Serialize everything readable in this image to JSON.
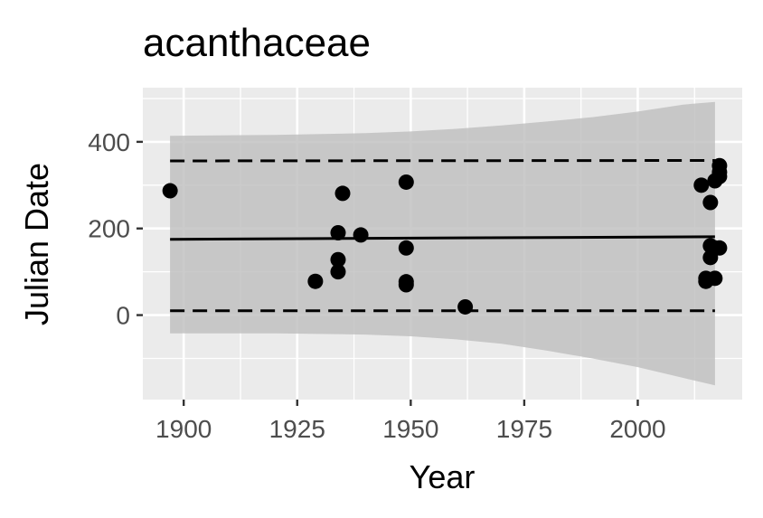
{
  "chart_data": {
    "type": "scatter",
    "title": "acanthaceae",
    "xlabel": "Year",
    "ylabel": "Julian Date",
    "xlim": [
      1891,
      2023
    ],
    "ylim": [
      -195,
      525
    ],
    "x_ticks": [
      1900,
      1925,
      1950,
      1975,
      2000
    ],
    "y_ticks": [
      0,
      200,
      400
    ],
    "grid": true,
    "background": "#ebebeb",
    "colors": {
      "point": "#000000",
      "ribbon": "#bdbdbd",
      "line": "#000000"
    },
    "points": [
      {
        "x": 1897,
        "y": 287
      },
      {
        "x": 1929,
        "y": 78
      },
      {
        "x": 1934,
        "y": 190
      },
      {
        "x": 1934,
        "y": 128
      },
      {
        "x": 1934,
        "y": 100
      },
      {
        "x": 1935,
        "y": 281
      },
      {
        "x": 1939,
        "y": 185
      },
      {
        "x": 1949,
        "y": 307
      },
      {
        "x": 1949,
        "y": 155
      },
      {
        "x": 1949,
        "y": 77
      },
      {
        "x": 1949,
        "y": 70
      },
      {
        "x": 1962,
        "y": 19
      },
      {
        "x": 2014,
        "y": 300
      },
      {
        "x": 2015,
        "y": 85
      },
      {
        "x": 2015,
        "y": 78
      },
      {
        "x": 2016,
        "y": 260
      },
      {
        "x": 2016,
        "y": 160
      },
      {
        "x": 2016,
        "y": 133
      },
      {
        "x": 2017,
        "y": 310
      },
      {
        "x": 2017,
        "y": 155
      },
      {
        "x": 2017,
        "y": 85
      },
      {
        "x": 2018,
        "y": 345
      },
      {
        "x": 2018,
        "y": 330
      },
      {
        "x": 2018,
        "y": 320
      },
      {
        "x": 2018,
        "y": 155
      }
    ],
    "fit_line": {
      "x": [
        1897,
        2017
      ],
      "y": [
        175,
        181
      ]
    },
    "ribbon": {
      "x": [
        1897,
        1920,
        1940,
        1950,
        1960,
        1970,
        1980,
        1990,
        2000,
        2010,
        2017
      ],
      "upper": [
        414,
        416,
        420,
        424,
        430,
        438,
        447,
        457,
        470,
        486,
        492
      ],
      "lower": [
        -42,
        -42,
        -45,
        -49,
        -56,
        -66,
        -82,
        -100,
        -120,
        -145,
        -162
      ]
    },
    "dashed_upper": {
      "x": [
        1897,
        2017
      ],
      "y": [
        356,
        357
      ]
    },
    "dashed_lower": {
      "x": [
        1897,
        2017
      ],
      "y": [
        10,
        10
      ]
    }
  }
}
